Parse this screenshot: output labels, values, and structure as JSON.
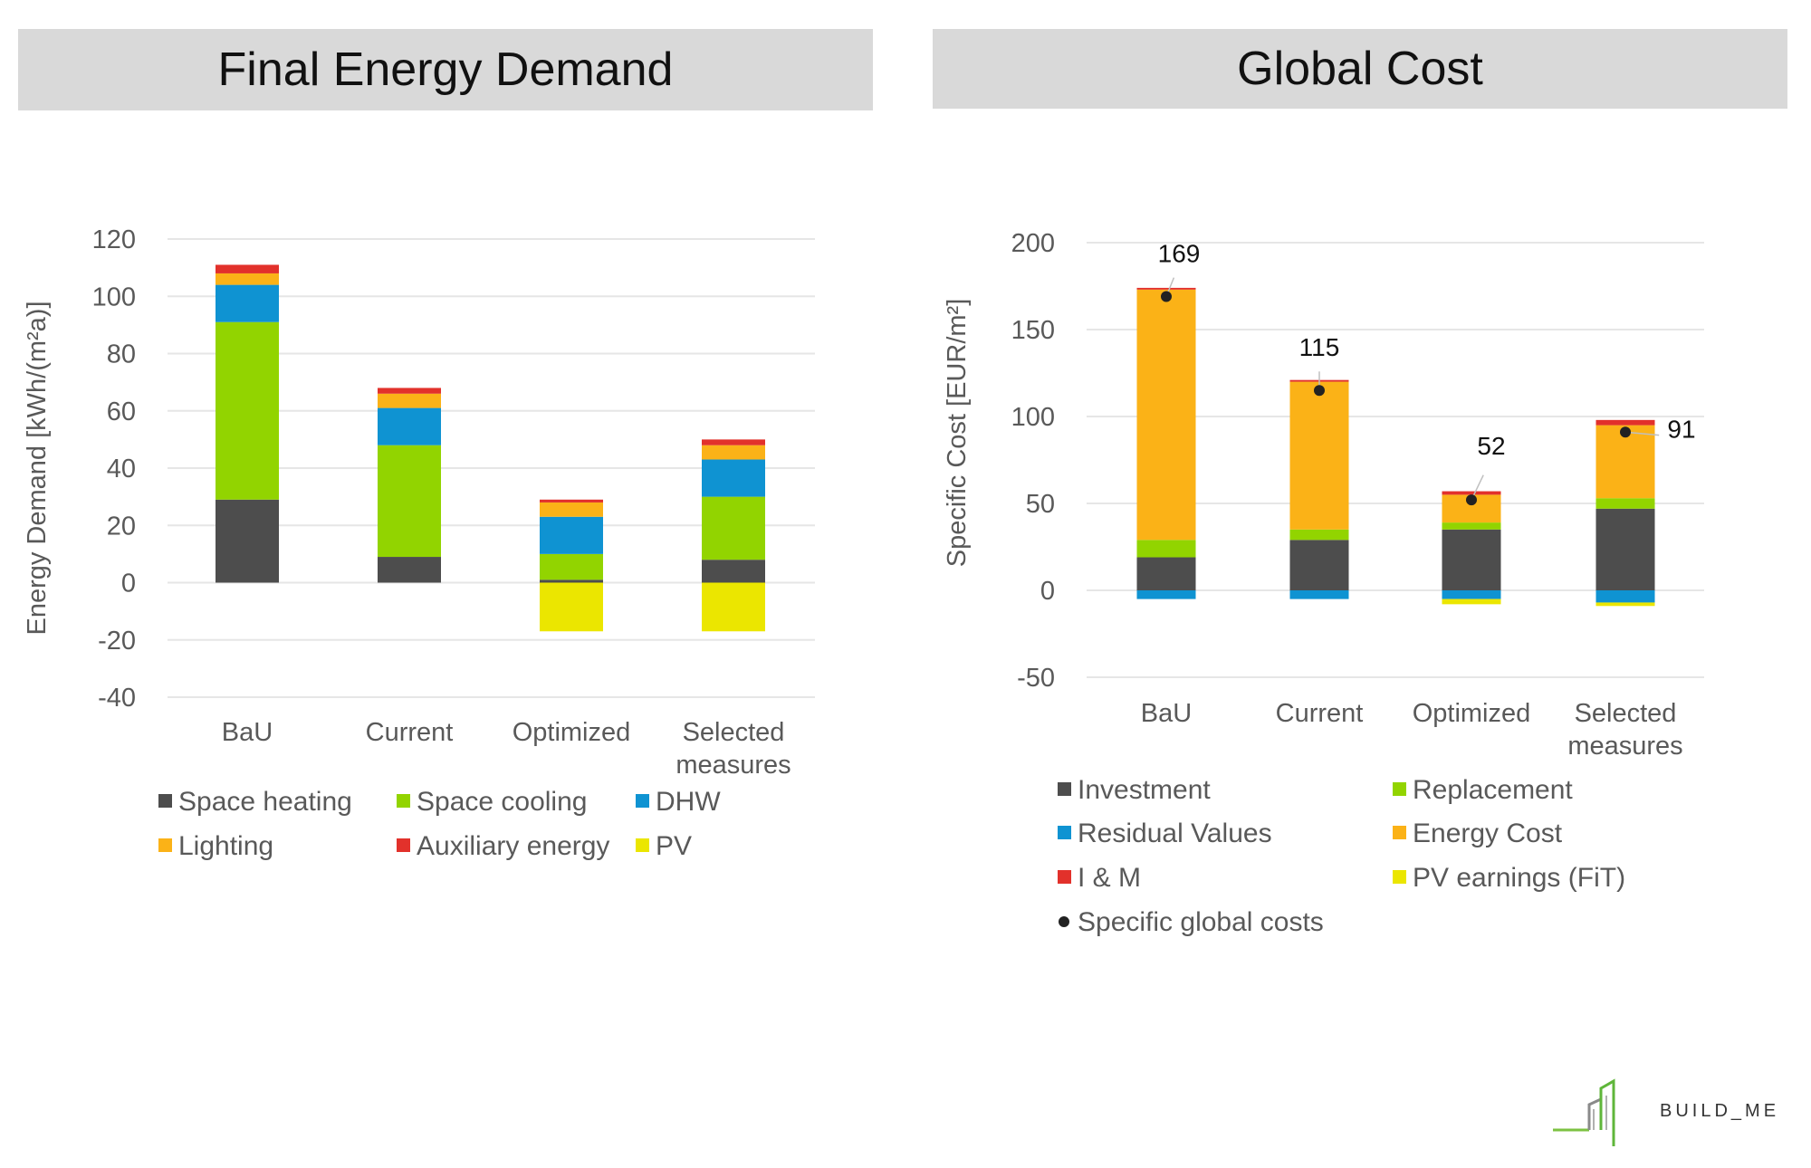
{
  "headers": {
    "left": "Final Energy Demand",
    "right": "Global Cost"
  },
  "logo": {
    "text": "BUILD_ME"
  },
  "colors": {
    "investment": "#4d4d4d",
    "green": "#92d400",
    "blue": "#0f93d2",
    "orange": "#fbb217",
    "red": "#e2312b",
    "yellow": "#ebe600",
    "grid": "#e6e6e6",
    "dot": "#222222"
  },
  "chart_data": [
    {
      "type": "bar",
      "stacked": true,
      "title": "Final Energy Demand",
      "ylabel": "Energy Demand [kWh/(m²a)]",
      "xlabel": "",
      "ylim": [
        -40,
        120
      ],
      "yticks": [
        120,
        100,
        80,
        60,
        40,
        20,
        0,
        -20,
        -40
      ],
      "grid": true,
      "legend_position": "bottom",
      "categories": [
        [
          "BaU"
        ],
        [
          "Current"
        ],
        [
          "Optimized"
        ],
        [
          "Selected",
          "measures"
        ]
      ],
      "series": [
        {
          "name": "Space heating",
          "color": "#4d4d4d",
          "values": [
            29,
            9,
            1,
            8
          ]
        },
        {
          "name": "Space cooling",
          "color": "#92d400",
          "values": [
            62,
            39,
            9,
            22
          ]
        },
        {
          "name": "DHW",
          "color": "#0f93d2",
          "values": [
            13,
            13,
            13,
            13
          ]
        },
        {
          "name": "Lighting",
          "color": "#fbb217",
          "values": [
            4,
            5,
            5,
            5
          ]
        },
        {
          "name": "Auxiliary energy",
          "color": "#e2312b",
          "values": [
            3,
            2,
            1,
            2
          ]
        },
        {
          "name": "PV",
          "color": "#ebe600",
          "values": [
            0,
            0,
            -17,
            -17
          ]
        }
      ]
    },
    {
      "type": "bar",
      "stacked": true,
      "title": "Global Cost",
      "ylabel": "Specific Cost [EUR/m²]",
      "xlabel": "",
      "ylim": [
        -50,
        200
      ],
      "yticks": [
        200,
        150,
        100,
        50,
        0,
        -50
      ],
      "grid": true,
      "legend_position": "bottom",
      "categories": [
        [
          "BaU"
        ],
        [
          "Current"
        ],
        [
          "Optimized"
        ],
        [
          "Selected",
          "measures"
        ]
      ],
      "series": [
        {
          "name": "Investment",
          "color": "#4d4d4d",
          "values": [
            19,
            29,
            35,
            47
          ]
        },
        {
          "name": "Replacement",
          "color": "#92d400",
          "values": [
            10,
            6,
            4,
            6
          ]
        },
        {
          "name": "Residual Values",
          "color": "#0f93d2",
          "values": [
            -5,
            -5,
            -5,
            -7
          ]
        },
        {
          "name": "Energy Cost",
          "color": "#fbb217",
          "values": [
            144,
            85,
            16,
            42
          ]
        },
        {
          "name": "I & M",
          "color": "#e2312b",
          "values": [
            1,
            1,
            2,
            3
          ]
        },
        {
          "name": "PV earnings (FiT)",
          "color": "#ebe600",
          "values": [
            0,
            0,
            -3,
            -2
          ]
        }
      ],
      "points": {
        "name": "Specific global costs",
        "color": "#222222",
        "values": [
          169,
          115,
          52,
          91
        ]
      }
    }
  ]
}
